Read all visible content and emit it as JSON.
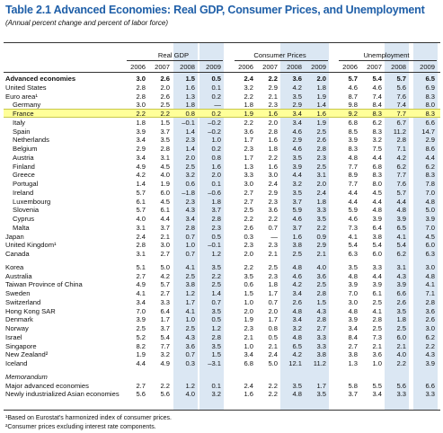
{
  "header": {
    "title": "Table 2.1 Advanced Economies: Real GDP, Consumer Prices, and Unemployment",
    "subtitle": "(Annual percent change and percent of labor force)"
  },
  "table": {
    "groups": [
      {
        "name": "Real GDP",
        "years": [
          "2006",
          "2007",
          "2008",
          "2009"
        ]
      },
      {
        "name": "Consumer Prices",
        "years": [
          "2006",
          "2007",
          "2008",
          "2009"
        ]
      },
      {
        "name": "Unemployment",
        "years": [
          "2006",
          "2007",
          "2008",
          "2009"
        ]
      }
    ],
    "shaded_years": [
      2,
      3
    ],
    "sections": [
      {
        "rows": [
          {
            "name": "Advanced economies",
            "bold": true,
            "values": [
              "3.0",
              "2.6",
              "1.5",
              "0.5",
              "2.4",
              "2.2",
              "3.6",
              "2.0",
              "5.7",
              "5.4",
              "5.7",
              "6.5"
            ]
          },
          {
            "name": "United States",
            "values": [
              "2.8",
              "2.0",
              "1.6",
              "0.1",
              "3.2",
              "2.9",
              "4.2",
              "1.8",
              "4.6",
              "4.6",
              "5.6",
              "6.9"
            ]
          },
          {
            "name": "Euro area¹",
            "values": [
              "2.8",
              "2.6",
              "1.3",
              "0.2",
              "2.2",
              "2.1",
              "3.5",
              "1.9",
              "8.7",
              "7.4",
              "7.6",
              "8.3"
            ]
          },
          {
            "name": "Germany",
            "indent": true,
            "values": [
              "3.0",
              "2.5",
              "1.8",
              "—",
              "1.8",
              "2.3",
              "2.9",
              "1.4",
              "9.8",
              "8.4",
              "7.4",
              "8.0"
            ]
          },
          {
            "name": "France",
            "indent": true,
            "highlight": true,
            "values": [
              "2.2",
              "2.2",
              "0.8",
              "0.2",
              "1.9",
              "1.6",
              "3.4",
              "1.6",
              "9.2",
              "8.3",
              "7.7",
              "8.3"
            ]
          },
          {
            "name": "Italy",
            "indent": true,
            "values": [
              "1.8",
              "1.5",
              "–0.1",
              "–0.2",
              "2.2",
              "2.0",
              "3.4",
              "1.9",
              "6.8",
              "6.2",
              "6.7",
              "6.6"
            ]
          },
          {
            "name": "Spain",
            "indent": true,
            "values": [
              "3.9",
              "3.7",
              "1.4",
              "–0.2",
              "3.6",
              "2.8",
              "4.6",
              "2.5",
              "8.5",
              "8.3",
              "11.2",
              "14.7"
            ]
          },
          {
            "name": "Netherlands",
            "indent": true,
            "values": [
              "3.4",
              "3.5",
              "2.3",
              "1.0",
              "1.7",
              "1.6",
              "2.9",
              "2.6",
              "3.9",
              "3.2",
              "2.8",
              "2.9"
            ]
          },
          {
            "name": "Belgium",
            "indent": true,
            "values": [
              "2.9",
              "2.8",
              "1.4",
              "0.2",
              "2.3",
              "1.8",
              "4.6",
              "2.8",
              "8.3",
              "7.5",
              "7.1",
              "8.6"
            ]
          },
          {
            "name": "Austria",
            "indent": true,
            "values": [
              "3.4",
              "3.1",
              "2.0",
              "0.8",
              "1.7",
              "2.2",
              "3.5",
              "2.3",
              "4.8",
              "4.4",
              "4.2",
              "4.4"
            ]
          },
          {
            "name": "Finland",
            "indent": true,
            "values": [
              "4.9",
              "4.5",
              "2.5",
              "1.6",
              "1.3",
              "1.6",
              "3.9",
              "2.5",
              "7.7",
              "6.8",
              "6.2",
              "6.2"
            ]
          },
          {
            "name": "Greece",
            "indent": true,
            "values": [
              "4.2",
              "4.0",
              "3.2",
              "2.0",
              "3.3",
              "3.0",
              "4.4",
              "3.1",
              "8.9",
              "8.3",
              "7.7",
              "8.3"
            ]
          },
          {
            "name": "Portugal",
            "indent": true,
            "values": [
              "1.4",
              "1.9",
              "0.6",
              "0.1",
              "3.0",
              "2.4",
              "3.2",
              "2.0",
              "7.7",
              "8.0",
              "7.6",
              "7.8"
            ]
          },
          {
            "name": "Ireland",
            "indent": true,
            "values": [
              "5.7",
              "6.0",
              "–1.8",
              "–0.6",
              "2.7",
              "2.9",
              "3.5",
              "2.4",
              "4.4",
              "4.5",
              "5.7",
              "7.0"
            ]
          },
          {
            "name": "Luxembourg",
            "indent": true,
            "values": [
              "6.1",
              "4.5",
              "2.3",
              "1.8",
              "2.7",
              "2.3",
              "3.7",
              "1.8",
              "4.4",
              "4.4",
              "4.4",
              "4.8"
            ]
          },
          {
            "name": "Slovenia",
            "indent": true,
            "values": [
              "5.7",
              "6.1",
              "4.3",
              "3.7",
              "2.5",
              "3.6",
              "5.9",
              "3.3",
              "5.9",
              "4.8",
              "4.8",
              "5.0"
            ]
          },
          {
            "name": "Cyprus",
            "indent": true,
            "values": [
              "4.0",
              "4.4",
              "3.4",
              "2.8",
              "2.2",
              "2.2",
              "4.6",
              "3.5",
              "4.6",
              "3.9",
              "3.9",
              "3.9"
            ]
          },
          {
            "name": "Malta",
            "indent": true,
            "values": [
              "3.1",
              "3.7",
              "2.8",
              "2.3",
              "2.6",
              "0.7",
              "3.7",
              "2.2",
              "7.3",
              "6.4",
              "6.5",
              "7.0"
            ]
          },
          {
            "name": "Japan",
            "values": [
              "2.4",
              "2.1",
              "0.7",
              "0.5",
              "0.3",
              "—",
              "1.6",
              "0.9",
              "4.1",
              "3.8",
              "4.1",
              "4.5"
            ]
          },
          {
            "name": "United Kingdom¹",
            "values": [
              "2.8",
              "3.0",
              "1.0",
              "–0.1",
              "2.3",
              "2.3",
              "3.8",
              "2.9",
              "5.4",
              "5.4",
              "5.4",
              "6.0"
            ]
          },
          {
            "name": "Canada",
            "values": [
              "3.1",
              "2.7",
              "0.7",
              "1.2",
              "2.0",
              "2.1",
              "2.5",
              "2.1",
              "6.3",
              "6.0",
              "6.2",
              "6.3"
            ]
          }
        ]
      },
      {
        "rows": [
          {
            "name": "Korea",
            "values": [
              "5.1",
              "5.0",
              "4.1",
              "3.5",
              "2.2",
              "2.5",
              "4.8",
              "4.0",
              "3.5",
              "3.3",
              "3.1",
              "3.0"
            ]
          },
          {
            "name": "Australia",
            "values": [
              "2.7",
              "4.2",
              "2.5",
              "2.2",
              "3.5",
              "2.3",
              "4.6",
              "3.6",
              "4.8",
              "4.4",
              "4.3",
              "4.8"
            ]
          },
          {
            "name": "Taiwan Province of China",
            "values": [
              "4.9",
              "5.7",
              "3.8",
              "2.5",
              "0.6",
              "1.8",
              "4.2",
              "2.5",
              "3.9",
              "3.9",
              "3.9",
              "4.1"
            ]
          },
          {
            "name": "Sweden",
            "values": [
              "4.1",
              "2.7",
              "1.2",
              "1.4",
              "1.5",
              "1.7",
              "3.4",
              "2.8",
              "7.0",
              "6.1",
              "6.6",
              "7.1"
            ]
          },
          {
            "name": "Switzerland",
            "values": [
              "3.4",
              "3.3",
              "1.7",
              "0.7",
              "1.0",
              "0.7",
              "2.6",
              "1.5",
              "3.0",
              "2.5",
              "2.6",
              "2.8"
            ]
          },
          {
            "name": "Hong Kong SAR",
            "values": [
              "7.0",
              "6.4",
              "4.1",
              "3.5",
              "2.0",
              "2.0",
              "4.8",
              "4.3",
              "4.8",
              "4.1",
              "3.5",
              "3.6"
            ]
          },
          {
            "name": "Denmark",
            "values": [
              "3.9",
              "1.7",
              "1.0",
              "0.5",
              "1.9",
              "1.7",
              "3.4",
              "2.8",
              "3.9",
              "2.8",
              "1.8",
              "2.6"
            ]
          },
          {
            "name": "Norway",
            "values": [
              "2.5",
              "3.7",
              "2.5",
              "1.2",
              "2.3",
              "0.8",
              "3.2",
              "2.7",
              "3.4",
              "2.5",
              "2.5",
              "3.0"
            ]
          },
          {
            "name": "Israel",
            "values": [
              "5.2",
              "5.4",
              "4.3",
              "2.8",
              "2.1",
              "0.5",
              "4.8",
              "3.3",
              "8.4",
              "7.3",
              "6.0",
              "6.2"
            ]
          },
          {
            "name": "Singapore",
            "values": [
              "8.2",
              "7.7",
              "3.6",
              "3.5",
              "1.0",
              "2.1",
              "6.5",
              "3.3",
              "2.7",
              "2.1",
              "2.1",
              "2.2"
            ]
          },
          {
            "name": "New Zealand²",
            "values": [
              "1.9",
              "3.2",
              "0.7",
              "1.5",
              "3.4",
              "2.4",
              "4.2",
              "3.8",
              "3.8",
              "3.6",
              "4.0",
              "4.3"
            ]
          },
          {
            "name": "Iceland",
            "values": [
              "4.4",
              "4.9",
              "0.3",
              "–3.1",
              "6.8",
              "5.0",
              "12.1",
              "11.2",
              "1.3",
              "1.0",
              "2.2",
              "3.9"
            ]
          }
        ]
      },
      {
        "label": "Memorandum",
        "rows": [
          {
            "name": "Major advanced economies",
            "values": [
              "2.7",
              "2.2",
              "1.2",
              "0.1",
              "2.4",
              "2.2",
              "3.5",
              "1.7",
              "5.8",
              "5.5",
              "5.6",
              "6.6"
            ]
          },
          {
            "name": "Newly industrialized Asian economies",
            "values": [
              "5.6",
              "5.6",
              "4.0",
              "3.2",
              "1.6",
              "2.2",
              "4.8",
              "3.5",
              "3.7",
              "3.4",
              "3.3",
              "3.3"
            ]
          }
        ]
      }
    ]
  },
  "footnotes": [
    "¹Based on Eurostat's harmonized index of consumer prices.",
    "²Consumer prices excluding interest rate components."
  ]
}
